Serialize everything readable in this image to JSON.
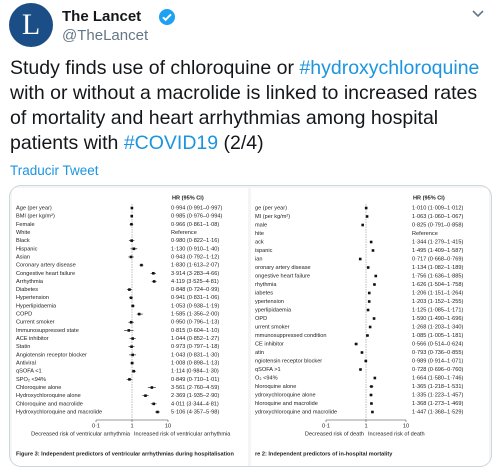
{
  "header": {
    "name": "The Lancet",
    "handle": "@TheLancet"
  },
  "tweet": {
    "segments": [
      "Study finds use of chloroquine or ",
      "#hydroxychloroquine",
      " with or without a macrolide is linked to increased rates of mortality and heart arrhythmias among hospital patients with ",
      "#COVID19",
      " (2/4)"
    ],
    "translate": "Traducir Tweet"
  },
  "figures": [
    {
      "column_header": "HR (95% CI)",
      "xlim": [
        0.1,
        10
      ],
      "xticks": [
        {
          "value": 0.1,
          "label": "0·1"
        },
        {
          "value": 1,
          "label": "1"
        },
        {
          "value": 10,
          "label": "10"
        }
      ],
      "decreased_label": "Decreased risk of ventricular arrhythmia",
      "increased_label": "Increased risk of ventricular arrhythmia",
      "caption": "Figure 3: Independent predictors of ventricular arrhythmias during hospitalisation",
      "rows": [
        {
          "label": "Age (per year)",
          "hr_text": "0·994 (0·991–0·997)",
          "hr": 0.994,
          "lo": 0.991,
          "hi": 0.997
        },
        {
          "label": "BMI (per kg/m²)",
          "hr_text": "0·985 (0·976–0·994)",
          "hr": 0.985,
          "lo": 0.976,
          "hi": 0.994
        },
        {
          "label": "Female",
          "hr_text": "0·966 (0·861–1·08)",
          "hr": 0.966,
          "lo": 0.861,
          "hi": 1.08
        },
        {
          "label": "White",
          "hr_text": "Reference",
          "hr": null,
          "lo": null,
          "hi": null
        },
        {
          "label": "Black",
          "hr_text": "0·980 (0·822–1·16)",
          "hr": 0.98,
          "lo": 0.822,
          "hi": 1.16
        },
        {
          "label": "Hispanic",
          "hr_text": "1·130 (0·910–1·40)",
          "hr": 1.13,
          "lo": 0.91,
          "hi": 1.4
        },
        {
          "label": "Asian",
          "hr_text": "0·943 (0·792–1·12)",
          "hr": 0.943,
          "lo": 0.792,
          "hi": 1.12
        },
        {
          "label": "Coronary artery disease",
          "hr_text": "1·830 (1·613–2·07)",
          "hr": 1.83,
          "lo": 1.613,
          "hi": 2.07
        },
        {
          "label": "Congestive heart failure",
          "hr_text": "3·914 (3·283–4·66)",
          "hr": 3.914,
          "lo": 3.283,
          "hi": 4.66
        },
        {
          "label": "Arrhythmia",
          "hr_text": "4·119 (3·525–4·81)",
          "hr": 4.119,
          "lo": 3.525,
          "hi": 4.81
        },
        {
          "label": "Diabetes",
          "hr_text": "0·848 (0·724–0·99)",
          "hr": 0.848,
          "lo": 0.724,
          "hi": 0.99
        },
        {
          "label": "Hypertension",
          "hr_text": "0·941 (0·831–1·06)",
          "hr": 0.941,
          "lo": 0.831,
          "hi": 1.06
        },
        {
          "label": "Hyperlipidaemia",
          "hr_text": "1·053 (0·938–1·19)",
          "hr": 1.053,
          "lo": 0.938,
          "hi": 1.19
        },
        {
          "label": "COPD",
          "hr_text": "1·585 (1·356–2·00)",
          "hr": 1.585,
          "lo": 1.356,
          "hi": 2.0
        },
        {
          "label": "Current smoker",
          "hr_text": "0·950 (0·796–1·13)",
          "hr": 0.95,
          "lo": 0.796,
          "hi": 1.13
        },
        {
          "label": "Immunosuppressed state",
          "hr_text": "0·815 (0·604–1·10)",
          "hr": 0.815,
          "lo": 0.604,
          "hi": 1.1
        },
        {
          "label": "ACE inhibitor",
          "hr_text": "1·044 (0·852–1·27)",
          "hr": 1.044,
          "lo": 0.852,
          "hi": 1.27
        },
        {
          "label": "Statin",
          "hr_text": "0·973 (0·797–1·18)",
          "hr": 0.973,
          "lo": 0.797,
          "hi": 1.18
        },
        {
          "label": "Angiotensin receptor blocker",
          "hr_text": "1·043 (0·831–1·30)",
          "hr": 1.043,
          "lo": 0.831,
          "hi": 1.3
        },
        {
          "label": "Antiviral",
          "hr_text": "1·008 (0·898–1·13)",
          "hr": 1.008,
          "lo": 0.898,
          "hi": 1.13
        },
        {
          "label": "qSOFA <1",
          "hr_text": "1·114 (0·984–1·30)",
          "hr": 1.114,
          "lo": 0.984,
          "hi": 1.3
        },
        {
          "label": "SPO₂ <94%",
          "hr_text": "0·849 (0·710–1·01)",
          "hr": 0.849,
          "lo": 0.71,
          "hi": 1.01
        },
        {
          "label": "Chloroquine alone",
          "hr_text": "3·561 (2·760–4·59)",
          "hr": 3.561,
          "lo": 2.76,
          "hi": 4.59
        },
        {
          "label": "Hydroxychloroquine alone",
          "hr_text": "2·369 (1·935–2·90)",
          "hr": 2.369,
          "lo": 1.935,
          "hi": 2.9
        },
        {
          "label": "Chloroquine and macrolide",
          "hr_text": "4·011 (3·344–4·81)",
          "hr": 4.011,
          "lo": 3.344,
          "hi": 4.81
        },
        {
          "label": "Hydroxychloroquine and macrolide",
          "hr_text": "5·106 (4·357–5·98)",
          "hr": 5.106,
          "lo": 4.357,
          "hi": 5.98
        }
      ]
    },
    {
      "column_header": "HR (95% CI)",
      "xlim": [
        0.1,
        10
      ],
      "xticks": [
        {
          "value": 0.1,
          "label": "0·1"
        },
        {
          "value": 1,
          "label": "1"
        },
        {
          "value": 10,
          "label": "10"
        }
      ],
      "decreased_label": "Decreased risk of death",
      "increased_label": "Increased risk of death",
      "caption": "re 2: Independent predictors of in-hospital mortality",
      "rows": [
        {
          "label": "ge (per year)",
          "hr_text": "1·010 (1·009–1·012)",
          "hr": 1.01,
          "lo": 1.009,
          "hi": 1.012
        },
        {
          "label": "MI (per kg/m²)",
          "hr_text": "1·063 (1·060–1·067)",
          "hr": 1.063,
          "lo": 1.06,
          "hi": 1.067
        },
        {
          "label": "male",
          "hr_text": "0·825 (0·791–0·858)",
          "hr": 0.825,
          "lo": 0.791,
          "hi": 0.858
        },
        {
          "label": "hite",
          "hr_text": "Reference",
          "hr": null,
          "lo": null,
          "hi": null
        },
        {
          "label": "ack",
          "hr_text": "1·344 (1·279–1·415)",
          "hr": 1.344,
          "lo": 1.279,
          "hi": 1.415
        },
        {
          "label": "ispanic",
          "hr_text": "1·495 (1·409–1·587)",
          "hr": 1.495,
          "lo": 1.409,
          "hi": 1.587
        },
        {
          "label": "ian",
          "hr_text": "0·717 (0·668–0·769)",
          "hr": 0.717,
          "lo": 0.668,
          "hi": 0.769
        },
        {
          "label": "oronary artery disease",
          "hr_text": "1·134 (1·082–1·189)",
          "hr": 1.134,
          "lo": 1.082,
          "hi": 1.189
        },
        {
          "label": "ongestive heart failure",
          "hr_text": "1·756 (1·636–1·885)",
          "hr": 1.756,
          "lo": 1.636,
          "hi": 1.885
        },
        {
          "label": "rhythmia",
          "hr_text": "1·626 (1·504–1·758)",
          "hr": 1.626,
          "lo": 1.504,
          "hi": 1.758
        },
        {
          "label": "iabetes",
          "hr_text": "1·206 (1·151–1·264)",
          "hr": 1.206,
          "lo": 1.151,
          "hi": 1.264
        },
        {
          "label": "ypertension",
          "hr_text": "1·203 (1·152–1·255)",
          "hr": 1.203,
          "lo": 1.152,
          "hi": 1.255
        },
        {
          "label": "yperlipidaemia",
          "hr_text": "1·125 (1·085–1·171)",
          "hr": 1.125,
          "lo": 1.085,
          "hi": 1.171
        },
        {
          "label": "OPD",
          "hr_text": "1·590 (1·490–1·696)",
          "hr": 1.59,
          "lo": 1.49,
          "hi": 1.696
        },
        {
          "label": "urrent smoker",
          "hr_text": "1·268 (1·203–1·340)",
          "hr": 1.268,
          "lo": 1.203,
          "hi": 1.34
        },
        {
          "label": "mmunosuppressed condition",
          "hr_text": "1·085 (1·005–1·181)",
          "hr": 1.085,
          "lo": 1.005,
          "hi": 1.181
        },
        {
          "label": "CE inhibitor",
          "hr_text": "0·566 (0·514–0·624)",
          "hr": 0.566,
          "lo": 0.514,
          "hi": 0.624
        },
        {
          "label": "atin",
          "hr_text": "0·793 (0·736–0·855)",
          "hr": 0.793,
          "lo": 0.736,
          "hi": 0.855
        },
        {
          "label": "ngiotensin receptor blocker",
          "hr_text": "0·989 (0·914–1·071)",
          "hr": 0.989,
          "lo": 0.914,
          "hi": 1.071
        },
        {
          "label": "qSOFA >1",
          "hr_text": "0·728 (0·696–0·760)",
          "hr": 0.728,
          "lo": 0.696,
          "hi": 0.76
        },
        {
          "label": "O₂ <94%",
          "hr_text": "1·664 (1·580–1·746)",
          "hr": 1.664,
          "lo": 1.58,
          "hi": 1.746
        },
        {
          "label": "hloroquine alone",
          "hr_text": "1·365 (1·218–1·531)",
          "hr": 1.365,
          "lo": 1.218,
          "hi": 1.531
        },
        {
          "label": "ydroxychloroquine alone",
          "hr_text": "1·335 (1·223–1·457)",
          "hr": 1.335,
          "lo": 1.223,
          "hi": 1.457
        },
        {
          "label": "hloroquine and macrolide",
          "hr_text": "1·368 (1·273–1·469)",
          "hr": 1.368,
          "lo": 1.273,
          "hi": 1.469
        },
        {
          "label": "ydroxychloroquine and macrolide",
          "hr_text": "1·447 (1·368–1·529)",
          "hr": 1.447,
          "lo": 1.368,
          "hi": 1.529
        }
      ]
    }
  ]
}
